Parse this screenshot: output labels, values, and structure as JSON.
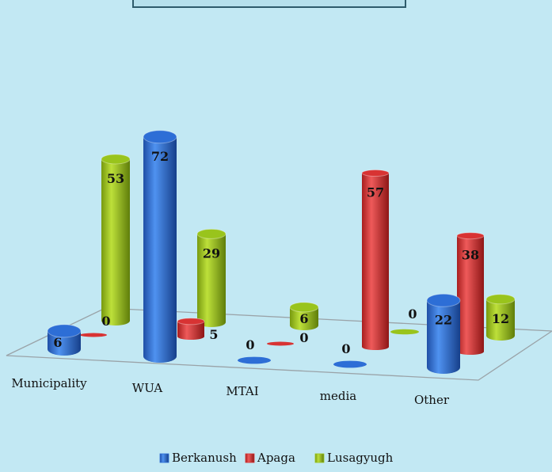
{
  "chart_data": {
    "type": "bar",
    "title": "",
    "categories": [
      "Municipality",
      "WUA",
      "MTAI",
      "media",
      "Other"
    ],
    "series": [
      {
        "name": "Berkanush",
        "values": [
          6,
          72,
          0,
          0,
          22
        ]
      },
      {
        "name": "Apaga",
        "values": [
          0,
          5,
          0,
          57,
          38
        ]
      },
      {
        "name": "Lusagyugh",
        "values": [
          53,
          29,
          6,
          0,
          12
        ]
      }
    ],
    "legend_position": "bottom",
    "grid": false
  },
  "colors": {
    "Berkanush": "#2d6ed6",
    "Apaga": "#d83333",
    "Lusagyugh": "#99c41c"
  }
}
